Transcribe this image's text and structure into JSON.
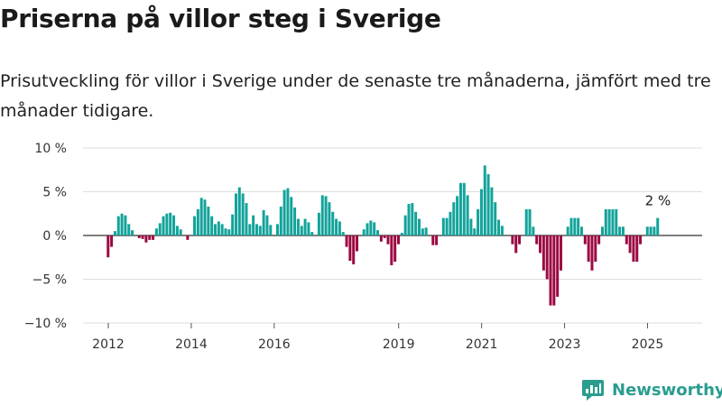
{
  "title": "Priserna på villor steg i Sverige",
  "subtitle": "Prisutveckling för villor i Sverige under de senaste tre månaderna, jämfört med tre månader tidigare.",
  "brand": {
    "name": "Newsworthy"
  },
  "colors": {
    "positive": "#12a39a",
    "negative": "#9c0842",
    "grid": "#dddddd",
    "zero": "#333333",
    "brand": "#2a9d8f"
  },
  "chart_data": {
    "type": "bar",
    "x_start": "2012-01",
    "y_unit": "%",
    "ylim": [
      -10,
      10
    ],
    "yticks": [
      10,
      5,
      0,
      -5,
      -10
    ],
    "ytick_labels": [
      "10 %",
      "5 %",
      "0 %",
      "−5 %",
      "−10 %"
    ],
    "xtick_labels": [
      {
        "label": "2012",
        "date": "2012-01"
      },
      {
        "label": "2014",
        "date": "2014-01"
      },
      {
        "label": "2016",
        "date": "2016-01"
      },
      {
        "label": "2019",
        "date": "2019-01"
      },
      {
        "label": "2021",
        "date": "2021-01"
      },
      {
        "label": "2023",
        "date": "2023-01"
      },
      {
        "label": "2025",
        "date": "2025-01"
      }
    ],
    "last_value_label": "2 %",
    "values": [
      -2.5,
      -1.3,
      0.5,
      2.2,
      2.5,
      2.3,
      1.3,
      0.6,
      0,
      -0.3,
      -0.4,
      -0.8,
      -0.5,
      -0.5,
      0.8,
      1.4,
      2.2,
      2.5,
      2.6,
      2.3,
      1.1,
      0.7,
      0,
      -0.5,
      0,
      2.2,
      3.0,
      4.3,
      4.1,
      3.3,
      2.2,
      1.3,
      1.6,
      1.3,
      0.8,
      0.7,
      2.4,
      4.8,
      5.5,
      4.8,
      3.7,
      1.3,
      2.3,
      1.3,
      1.1,
      2.9,
      2.3,
      1.2,
      0,
      1.3,
      3.3,
      5.2,
      5.4,
      4.4,
      3.2,
      1.9,
      1.1,
      1.9,
      1.5,
      0.4,
      0,
      2.6,
      4.6,
      4.5,
      3.8,
      2.7,
      1.9,
      1.6,
      0.4,
      -1.3,
      -2.9,
      -3.3,
      -1.8,
      0,
      0.7,
      1.4,
      1.7,
      1.5,
      0.6,
      -0.7,
      -0.3,
      -1.0,
      -3.4,
      -3.0,
      -1.0,
      0.3,
      2.3,
      3.6,
      3.7,
      2.7,
      1.9,
      0.8,
      0.9,
      0,
      -1.1,
      -1.1,
      0,
      2.0,
      2.0,
      2.7,
      3.8,
      4.5,
      6.0,
      6.0,
      4.6,
      1.9,
      0.8,
      3.0,
      5.3,
      8.0,
      7.0,
      5.5,
      3.8,
      1.8,
      1.1,
      0,
      0,
      -1.0,
      -2.0,
      -1.0,
      0,
      3.0,
      3.0,
      1.0,
      -1.0,
      -2.0,
      -4.0,
      -5.0,
      -8.0,
      -8.0,
      -7.0,
      -4.0,
      0,
      1.0,
      2.0,
      2.0,
      2.0,
      1.0,
      -1.0,
      -3.0,
      -4.0,
      -3.0,
      -1.0,
      1.0,
      3.0,
      3.0,
      3.0,
      3.0,
      1.0,
      1.0,
      -1.0,
      -2.0,
      -3.0,
      -3.0,
      -1.0,
      0,
      1.0,
      1.0,
      1.0,
      2.0
    ]
  }
}
